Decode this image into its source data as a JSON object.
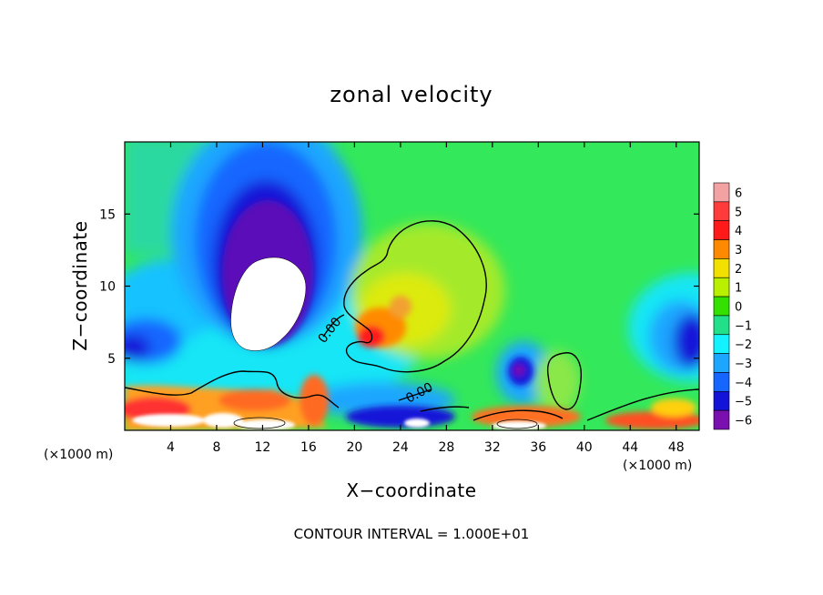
{
  "chart_data": {
    "type": "heatmap",
    "title": "zonal velocity",
    "xlabel": "X−coordinate",
    "ylabel": "Z−coordinate",
    "x_unit": "(×1000 m)",
    "y_unit": "(×1000 m)",
    "xlim": [
      0,
      50
    ],
    "ylim": [
      0,
      20
    ],
    "x_ticks": [
      4,
      8,
      12,
      16,
      20,
      24,
      28,
      32,
      36,
      40,
      44,
      48
    ],
    "y_ticks": [
      5,
      10,
      15
    ],
    "colorbar": {
      "levels": [
        6,
        5,
        4,
        3,
        2,
        1,
        0,
        -1,
        -2,
        -3,
        -4,
        -5,
        -6
      ],
      "labels": [
        "6",
        "5",
        "4",
        "3",
        "2",
        "1",
        "0",
        "−1",
        "−2",
        "−3",
        "−4",
        "−5",
        "−6"
      ],
      "colors": [
        "#f2a2a2",
        "#ff3b3b",
        "#ff1a1a",
        "#ff8a00",
        "#f2e000",
        "#b8f000",
        "#34e000",
        "#22e08a",
        "#14f2ff",
        "#1ca6ff",
        "#1466ff",
        "#1414d8",
        "#7a10b0"
      ]
    },
    "contour_labels": [
      "0.00",
      "0.00"
    ],
    "contour_interval_text": "CONTOUR INTERVAL =  1.000E+01"
  }
}
